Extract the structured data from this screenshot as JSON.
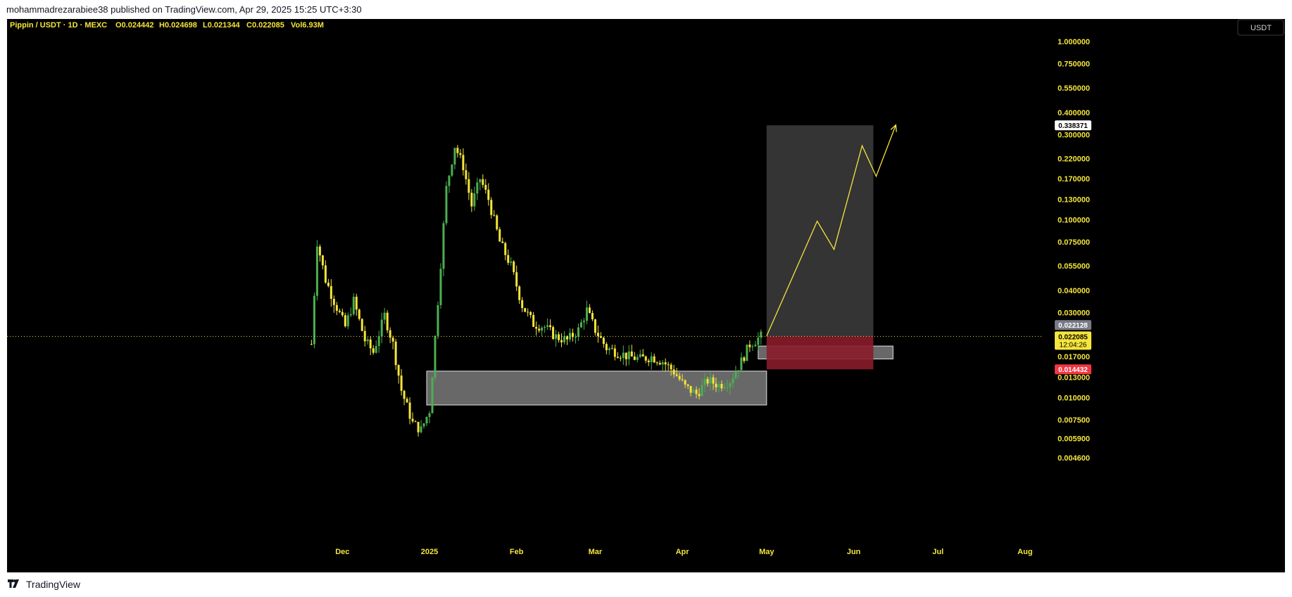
{
  "header": {
    "published_line": "mohammadrezarabiee38 published on TradingView.com, Apr 29, 2025 15:25 UTC+3:30"
  },
  "chart_title": "Pippin / USDT · 1D · MEXC",
  "ohlc": {
    "open": "O0.024442",
    "high": "H0.024698",
    "low": "L0.021344",
    "close": "C0.022085",
    "volume": "Vol6.93M"
  },
  "currency_button": "USDT",
  "footer": {
    "brand": "TradingView"
  },
  "colors": {
    "up": "#4caf50",
    "down": "#f5e53c",
    "accent": "#f5e53c",
    "stop": "#f23645",
    "target_zone": "#3a3a3a"
  },
  "chart_data": {
    "type": "candlestick",
    "scale": "log",
    "y_ticks": [
      "1.000000",
      "0.750000",
      "0.550000",
      "0.400000",
      "0.300000",
      "0.220000",
      "0.170000",
      "0.130000",
      "0.100000",
      "0.075000",
      "0.055000",
      "0.040000",
      "0.030000",
      "0.017000",
      "0.013000",
      "0.010000",
      "0.007500",
      "0.005900",
      "0.004600"
    ],
    "x_ticks": [
      "Dec",
      "2025",
      "Feb",
      "Mar",
      "Apr",
      "May",
      "Jun",
      "Jul",
      "Aug"
    ],
    "price_labels": {
      "target": "0.338371",
      "prev_close": "0.022128",
      "last": "0.022085",
      "countdown": "12:04:26",
      "stop": "0.014432"
    },
    "annotations": [
      {
        "type": "rectangle",
        "from": "2024-12-31",
        "to": "2025-05-01",
        "low": 0.0091,
        "high": 0.0141,
        "color": "gray"
      },
      {
        "type": "rectangle",
        "from": "2025-04-28",
        "to": "2025-06-15",
        "low": 0.0165,
        "high": 0.0195,
        "color": "gray"
      },
      {
        "type": "long_position",
        "from": "2025-05-01",
        "to": "2025-06-08",
        "entry": 0.022085,
        "target": 0.338371,
        "stop": 0.014432
      },
      {
        "type": "path",
        "dates": [
          "2025-05-01",
          "2025-05-19",
          "2025-05-25",
          "2025-06-04",
          "2025-06-09",
          "2025-06-16"
        ],
        "prices": [
          0.0222,
          0.098,
          0.068,
          0.26,
          0.175,
          0.34
        ]
      }
    ],
    "candle_waypoints": [
      [
        "2024-11-20",
        0.02
      ],
      [
        "2024-11-22",
        0.075
      ],
      [
        "2024-11-25",
        0.046
      ],
      [
        "2024-11-28",
        0.035
      ],
      [
        "2024-12-02",
        0.025
      ],
      [
        "2024-12-05",
        0.035
      ],
      [
        "2024-12-09",
        0.021
      ],
      [
        "2024-12-12",
        0.018
      ],
      [
        "2024-12-16",
        0.029
      ],
      [
        "2024-12-19",
        0.02
      ],
      [
        "2024-12-22",
        0.011
      ],
      [
        "2024-12-26",
        0.0072
      ],
      [
        "2024-12-29",
        0.0066
      ],
      [
        "2025-01-01",
        0.0085
      ],
      [
        "2025-01-04",
        0.035
      ],
      [
        "2025-01-07",
        0.15
      ],
      [
        "2025-01-10",
        0.26
      ],
      [
        "2025-01-13",
        0.2
      ],
      [
        "2025-01-16",
        0.12
      ],
      [
        "2025-01-19",
        0.17
      ],
      [
        "2025-01-22",
        0.13
      ],
      [
        "2025-01-26",
        0.075
      ],
      [
        "2025-01-30",
        0.055
      ],
      [
        "2025-02-03",
        0.033
      ],
      [
        "2025-02-07",
        0.026
      ],
      [
        "2025-02-11",
        0.025
      ],
      [
        "2025-02-15",
        0.022
      ],
      [
        "2025-02-19",
        0.021
      ],
      [
        "2025-02-23",
        0.024
      ],
      [
        "2025-02-26",
        0.031
      ],
      [
        "2025-03-01",
        0.024
      ],
      [
        "2025-03-05",
        0.019
      ],
      [
        "2025-03-09",
        0.018
      ],
      [
        "2025-03-13",
        0.017
      ],
      [
        "2025-03-17",
        0.0165
      ],
      [
        "2025-03-21",
        0.017
      ],
      [
        "2025-03-25",
        0.016
      ],
      [
        "2025-03-29",
        0.014
      ],
      [
        "2025-04-02",
        0.0115
      ],
      [
        "2025-04-06",
        0.0105
      ],
      [
        "2025-04-10",
        0.0125
      ],
      [
        "2025-04-14",
        0.0118
      ],
      [
        "2025-04-18",
        0.0125
      ],
      [
        "2025-04-22",
        0.016
      ],
      [
        "2025-04-25",
        0.02
      ],
      [
        "2025-04-29",
        0.0221
      ]
    ]
  }
}
